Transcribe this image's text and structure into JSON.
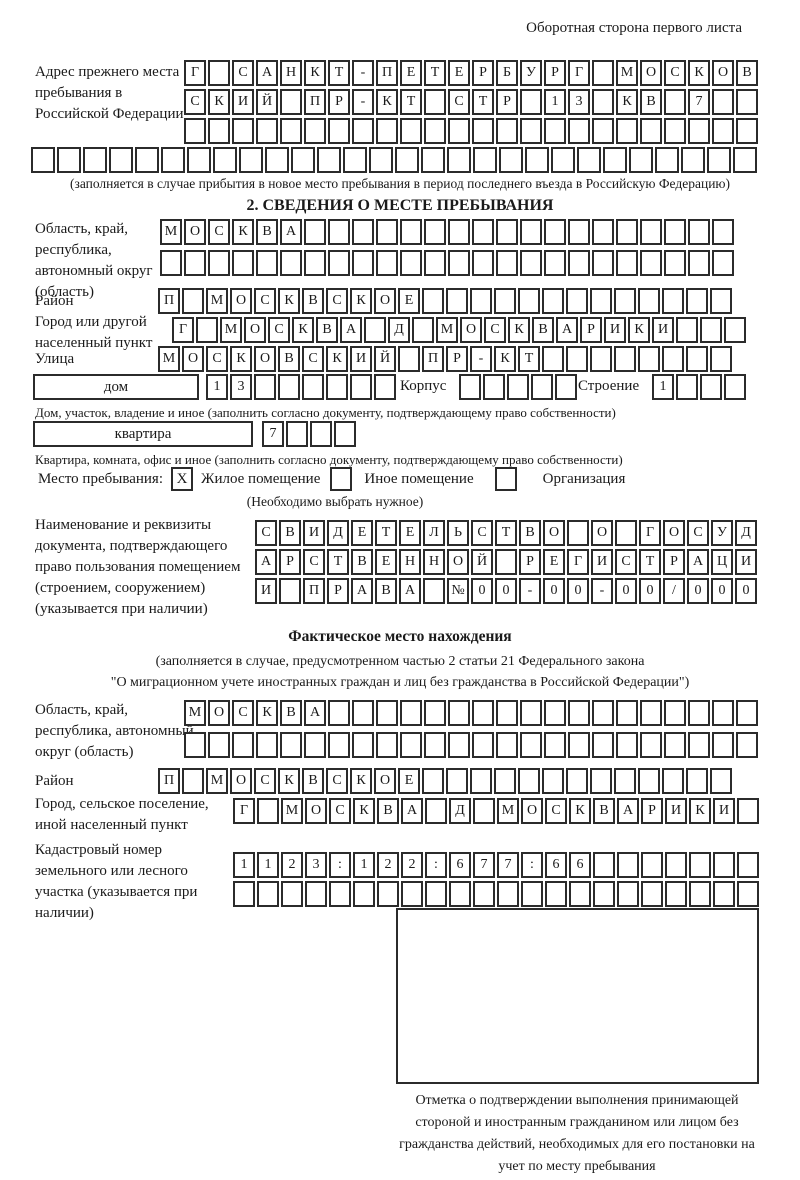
{
  "page": {
    "header_note": "Оборотная сторона первого листа"
  },
  "prev_address": {
    "label": "Адрес прежнего места пребывания в Российской Федерации",
    "row1": "Г САНКТ-ПЕТЕРБУРГ МОСКОВ",
    "row2": "СКИЙ ПР-КТ СТР 13 КВ 7",
    "row3": "",
    "row4": "",
    "footnote": "(заполняется в случае прибытия в новое место пребывания в период последнего въезда в Российскую Федерацию)"
  },
  "section2": {
    "title": "2. СВЕДЕНИЯ О МЕСТЕ ПРЕБЫВАНИЯ",
    "region_label": "Область, край, республика, автономный округ (область)",
    "region_row1": "МОСКВА",
    "region_row2": "",
    "district_label": "Район",
    "district_row": "П МОСКВСКОЕ",
    "city_label": "Город или другой населенный пункт",
    "city_row": "Г МОСКВА Д МОСКВАРИКИ",
    "street_label": "Улица",
    "street_row": "МОСКОВСКИЙ ПР-КТ",
    "house": {
      "type_value": "дом",
      "number": "13",
      "korpus_label": "Корпус",
      "korpus": "",
      "stroenie_label": "Строение",
      "stroenie": "1",
      "caption": "Дом, участок, владение и иное (заполнить согласно документу, подтверждающему право собственности)"
    },
    "apartment": {
      "type_value": "квартира",
      "number": "7",
      "caption": "Квартира, комната, офис и иное (заполнить согласно документу, подтверждающему право собственности)"
    },
    "stay": {
      "label": "Место пребывания:",
      "options": [
        {
          "label": "Жилое помещение",
          "mark": "X"
        },
        {
          "label": "Иное помещение",
          "mark": ""
        },
        {
          "label": "Организация",
          "mark": ""
        }
      ],
      "hint": "(Необходимо выбрать нужное)"
    },
    "document": {
      "label": "Наименование и реквизиты документа, подтверждающего право пользования помещением (строением, сооружением) (указывается при наличии)",
      "row1": "СВИДЕТЕЛЬСТВО О ГОСУД",
      "row2": "АРСТВЕННОЙ РЕГИСТРАЦИ",
      "row3": "И ПРАВА №00-00-00/000"
    }
  },
  "actual_location": {
    "title": "Фактическое место нахождения",
    "note1": "(заполняется в случае, предусмотренном частью 2 статьи 21 Федерального закона",
    "note2": "\"О миграционном учете иностранных граждан и лиц без гражданства в Российской Федерации\")",
    "region_label": "Область, край, республика, автономный округ (область)",
    "region_row1": "МОСКВА",
    "region_row2": "",
    "district_label": "Район",
    "district_row": "П МОСКВСКОЕ",
    "city_label": "Город, сельское поселение, иной населенный пункт",
    "city_row": "Г МОСКВА Д МОСКВАРИКИ",
    "cadastre_label": "Кадастровый номер земельного или лесного участка (указывается при наличии)",
    "cadastre_row1": "1123:122:677:66",
    "cadastre_row2": ""
  },
  "stamp": {
    "caption": "Отметка о подтверждении выполнения принимающей стороной и иностранным гражданином или лицом без гражданства действий, необходимых для его постановки на учет по месту пребывания"
  }
}
